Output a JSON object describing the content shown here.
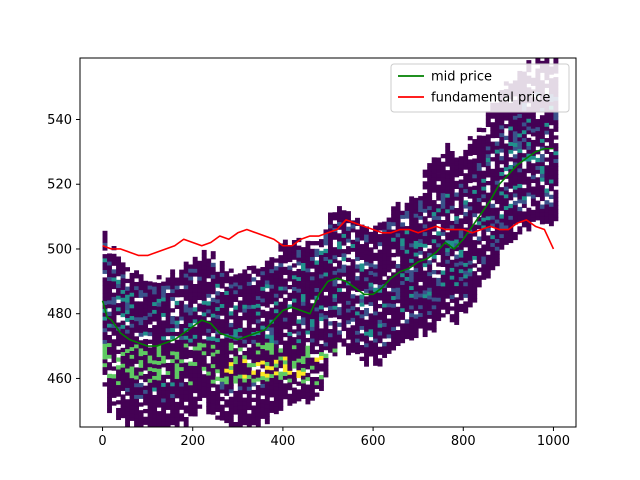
{
  "chart_data": {
    "type": "line",
    "xlim": [
      -50,
      1050
    ],
    "ylim": [
      445,
      559
    ],
    "x_ticks": [
      0,
      200,
      400,
      600,
      800,
      1000
    ],
    "y_ticks": [
      460,
      480,
      500,
      520,
      540
    ],
    "legend_position": "top-right",
    "grid": false,
    "background_type": "heatmap",
    "background_colormap": [
      "#440154",
      "#3b528b",
      "#21918c",
      "#5ec962",
      "#fde725"
    ],
    "series": [
      {
        "name": "mid price",
        "color": "#008000",
        "x": [
          0,
          10,
          20,
          40,
          60,
          80,
          100,
          120,
          140,
          160,
          180,
          200,
          220,
          240,
          260,
          280,
          300,
          320,
          340,
          360,
          380,
          400,
          420,
          440,
          460,
          480,
          500,
          520,
          540,
          560,
          580,
          600,
          620,
          640,
          660,
          680,
          700,
          720,
          740,
          760,
          780,
          800,
          820,
          840,
          860,
          880,
          900,
          920,
          940,
          960,
          980,
          1000
        ],
        "y": [
          484,
          479,
          478,
          474,
          472,
          471,
          470,
          470,
          471,
          472,
          474,
          476,
          478,
          477,
          474,
          473,
          472,
          473,
          474,
          475,
          478,
          481,
          482,
          481,
          480,
          486,
          490,
          491,
          490,
          488,
          486,
          486,
          488,
          491,
          493,
          494,
          496,
          497,
          499,
          502,
          500,
          503,
          507,
          511,
          515,
          520,
          523,
          526,
          528,
          530,
          531,
          531
        ]
      },
      {
        "name": "fundamental price",
        "color": "#ff0000",
        "x": [
          0,
          20,
          40,
          60,
          80,
          100,
          120,
          140,
          160,
          180,
          200,
          220,
          240,
          260,
          280,
          300,
          320,
          340,
          360,
          380,
          400,
          420,
          440,
          460,
          480,
          500,
          520,
          540,
          560,
          580,
          600,
          620,
          640,
          660,
          680,
          700,
          720,
          740,
          760,
          780,
          800,
          820,
          840,
          860,
          880,
          900,
          920,
          940,
          960,
          980,
          1000
        ],
        "y": [
          501,
          500,
          500,
          499,
          498,
          498,
          499,
          500,
          501,
          503,
          502,
          501,
          502,
          504,
          503,
          505,
          506,
          505,
          504,
          503,
          501,
          501,
          503,
          504,
          504,
          505,
          506,
          509,
          508,
          507,
          506,
          505,
          505,
          506,
          506,
          505,
          506,
          507,
          506,
          506,
          506,
          505,
          506,
          507,
          506,
          506,
          508,
          509,
          507,
          506,
          500
        ]
      }
    ]
  }
}
